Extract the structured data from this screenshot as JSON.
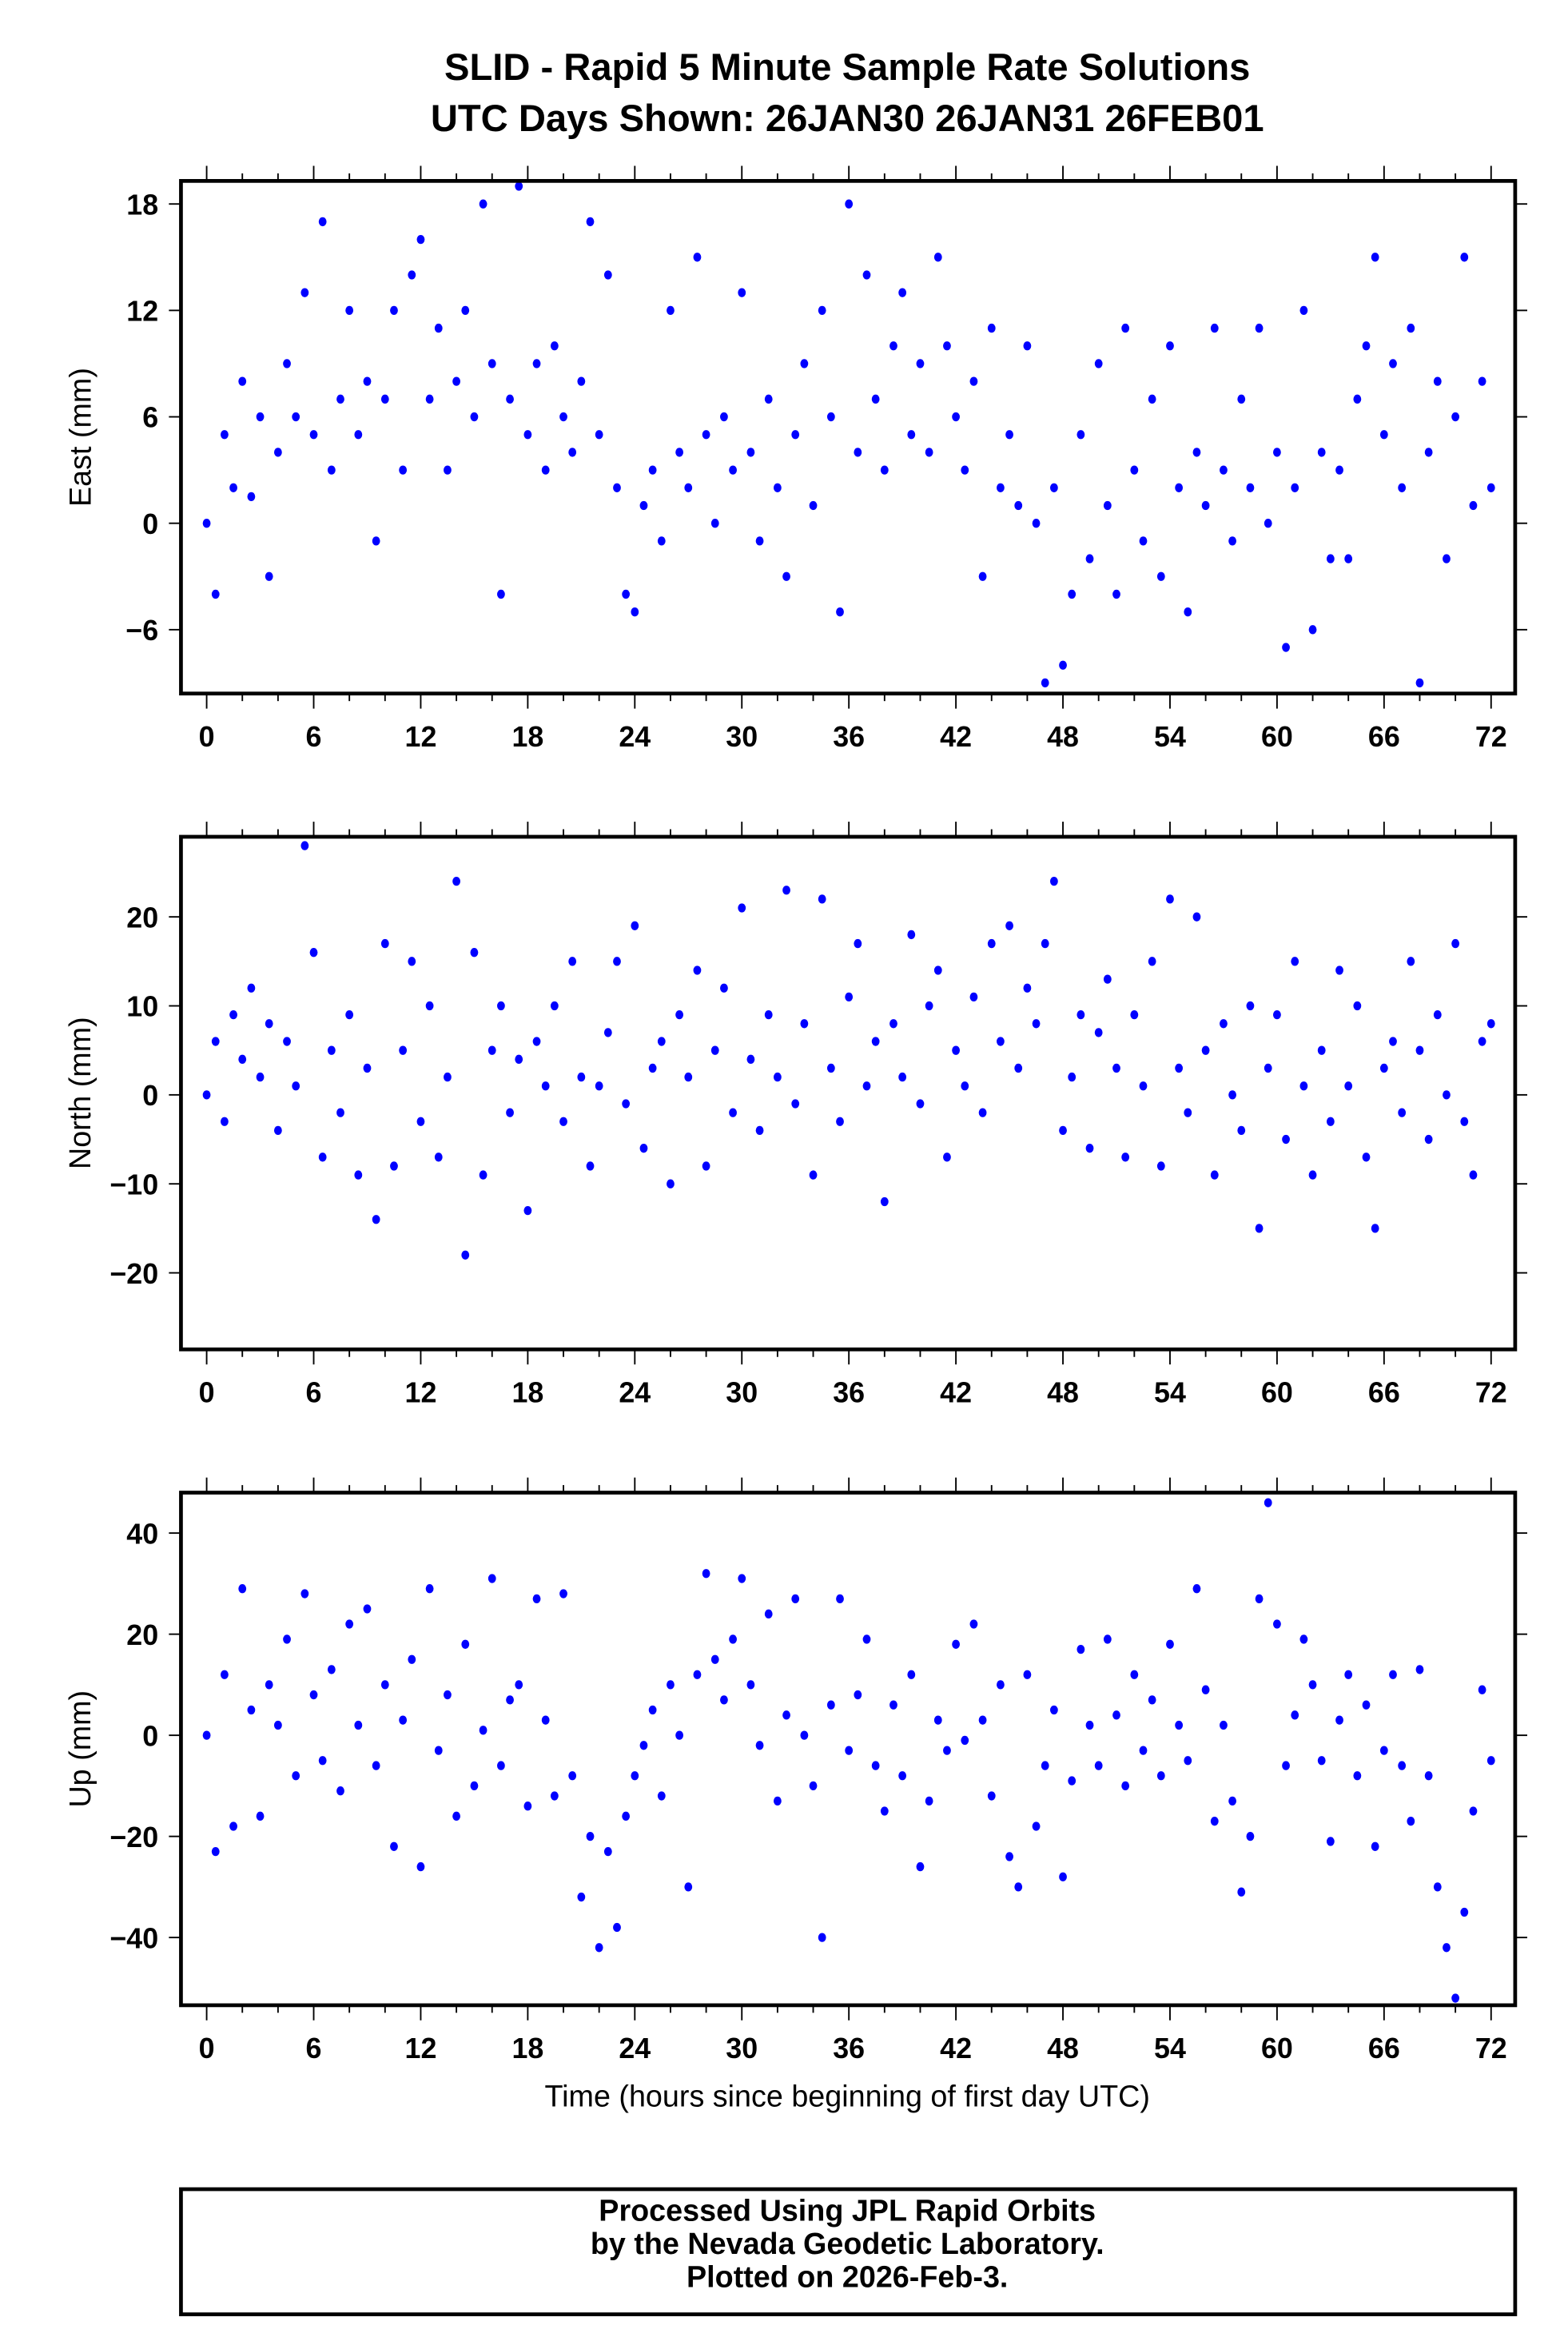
{
  "chart_data": {
    "type": "scatter",
    "title": "SLID - Rapid 5 Minute Sample Rate Solutions",
    "subtitle": "UTC Days Shown:  26JAN30 26JAN31 26FEB01",
    "xlabel": "Time (hours since beginning of first day UTC)",
    "xlim": [
      -1.44,
      73.35
    ],
    "x_ticks": [
      "0",
      "6",
      "12",
      "18",
      "24",
      "30",
      "36",
      "42",
      "48",
      "54",
      "60",
      "66",
      "72"
    ],
    "x_start": 0,
    "x_step": 0.5,
    "point_color": "#0000ff",
    "grid": false,
    "panels": [
      {
        "name": "East",
        "ylabel": "East (mm)",
        "ylim": [
          -9.6,
          19.3
        ],
        "y_ticks": [
          "-6",
          "0",
          "6",
          "12",
          "18"
        ],
        "values": [
          0,
          -4,
          5,
          2,
          8,
          1.5,
          6,
          -3,
          4,
          9,
          6,
          13,
          5,
          17,
          3,
          7,
          12,
          5,
          8,
          -1,
          7,
          12,
          3,
          14,
          16,
          7,
          11,
          3,
          8,
          12,
          6,
          18,
          9,
          -4,
          7,
          19,
          5,
          9,
          3,
          10,
          6,
          4,
          8,
          17,
          5,
          14,
          2,
          -4,
          -5,
          1,
          3,
          -1,
          12,
          4,
          2,
          15,
          5,
          0,
          6,
          3,
          13,
          4,
          -1,
          7,
          2,
          -3,
          5,
          9,
          1,
          12,
          6,
          -5,
          18,
          4,
          14,
          7,
          3,
          10,
          13,
          5,
          9,
          4,
          15,
          10,
          6,
          3,
          8,
          -3,
          11,
          2,
          5,
          1,
          10,
          0,
          -9,
          2,
          -8,
          -4,
          5,
          -2,
          9,
          1,
          -4,
          11,
          3,
          -1,
          7,
          -3,
          10,
          2,
          -5,
          4,
          1,
          11,
          3,
          -1,
          7,
          2,
          11,
          0,
          4,
          -7,
          2,
          12,
          -6,
          4,
          -2,
          3,
          -2,
          7,
          10,
          15,
          5,
          9,
          2,
          11,
          -9,
          4,
          8,
          -2,
          6,
          15,
          1,
          8,
          2
        ]
      },
      {
        "name": "North",
        "ylabel": "North (mm)",
        "ylim": [
          -28.6,
          29
        ],
        "y_ticks": [
          "-20",
          "-10",
          "0",
          "10",
          "20"
        ],
        "values": [
          0,
          6,
          -3,
          9,
          4,
          12,
          2,
          8,
          -4,
          6,
          1,
          28,
          16,
          -7,
          5,
          -2,
          9,
          -9,
          3,
          -14,
          17,
          -8,
          5,
          15,
          -3,
          10,
          -7,
          2,
          24,
          -18,
          16,
          -9,
          5,
          10,
          -2,
          4,
          -13,
          6,
          1,
          10,
          -3,
          15,
          2,
          -8,
          1,
          7,
          15,
          -1,
          19,
          -6,
          3,
          6,
          -10,
          9,
          2,
          14,
          -8,
          5,
          12,
          -2,
          21,
          4,
          -4,
          9,
          2,
          23,
          -1,
          8,
          -9,
          22,
          3,
          -3,
          11,
          17,
          1,
          6,
          -12,
          8,
          2,
          18,
          -1,
          10,
          14,
          -7,
          5,
          1,
          11,
          -2,
          17,
          6,
          19,
          3,
          12,
          8,
          17,
          24,
          -4,
          2,
          9,
          -6,
          7,
          13,
          3,
          -7,
          9,
          1,
          15,
          -8,
          22,
          3,
          -2,
          20,
          5,
          -9,
          8,
          0,
          -4,
          10,
          -15,
          3,
          9,
          -5,
          15,
          1,
          -9,
          5,
          -3,
          14,
          1,
          10,
          -7,
          -15,
          3,
          6,
          -2,
          15,
          5,
          -5,
          9,
          0,
          17,
          -3,
          -9,
          6,
          8
        ]
      },
      {
        "name": "Up",
        "ylabel": "Up (mm)",
        "ylim": [
          -53.4,
          48
        ],
        "y_ticks": [
          "-40",
          "-20",
          "0",
          "20",
          "40"
        ],
        "values": [
          0,
          -23,
          12,
          -18,
          29,
          5,
          -16,
          10,
          2,
          19,
          -8,
          28,
          8,
          -5,
          13,
          -11,
          22,
          2,
          25,
          -6,
          10,
          -22,
          3,
          15,
          -26,
          29,
          -3,
          8,
          -16,
          18,
          -10,
          1,
          31,
          -6,
          7,
          10,
          -14,
          27,
          3,
          -12,
          28,
          -8,
          -32,
          -20,
          -42,
          -23,
          -38,
          -16,
          -8,
          -2,
          5,
          -12,
          10,
          0,
          -30,
          12,
          32,
          15,
          7,
          19,
          31,
          10,
          -2,
          24,
          -13,
          4,
          27,
          0,
          -10,
          -40,
          6,
          27,
          -3,
          8,
          19,
          -6,
          -15,
          6,
          -8,
          12,
          -26,
          -13,
          3,
          -3,
          18,
          -1,
          22,
          3,
          -12,
          10,
          -24,
          -30,
          12,
          -18,
          -6,
          5,
          -28,
          -9,
          17,
          2,
          -6,
          19,
          4,
          -10,
          12,
          -3,
          7,
          -8,
          18,
          2,
          -5,
          29,
          9,
          -17,
          2,
          -13,
          -31,
          -20,
          27,
          46,
          22,
          -6,
          4,
          19,
          10,
          -5,
          -21,
          3,
          12,
          -8,
          6,
          -22,
          -3,
          12,
          -6,
          -17,
          13,
          -8,
          -30,
          -42,
          -52,
          -35,
          -15,
          9,
          -5
        ]
      }
    ]
  },
  "footer": {
    "line1": "Processed Using JPL Rapid Orbits",
    "line2": "by the Nevada Geodetic Laboratory.",
    "line3": "Plotted on 2026-Feb-3."
  }
}
